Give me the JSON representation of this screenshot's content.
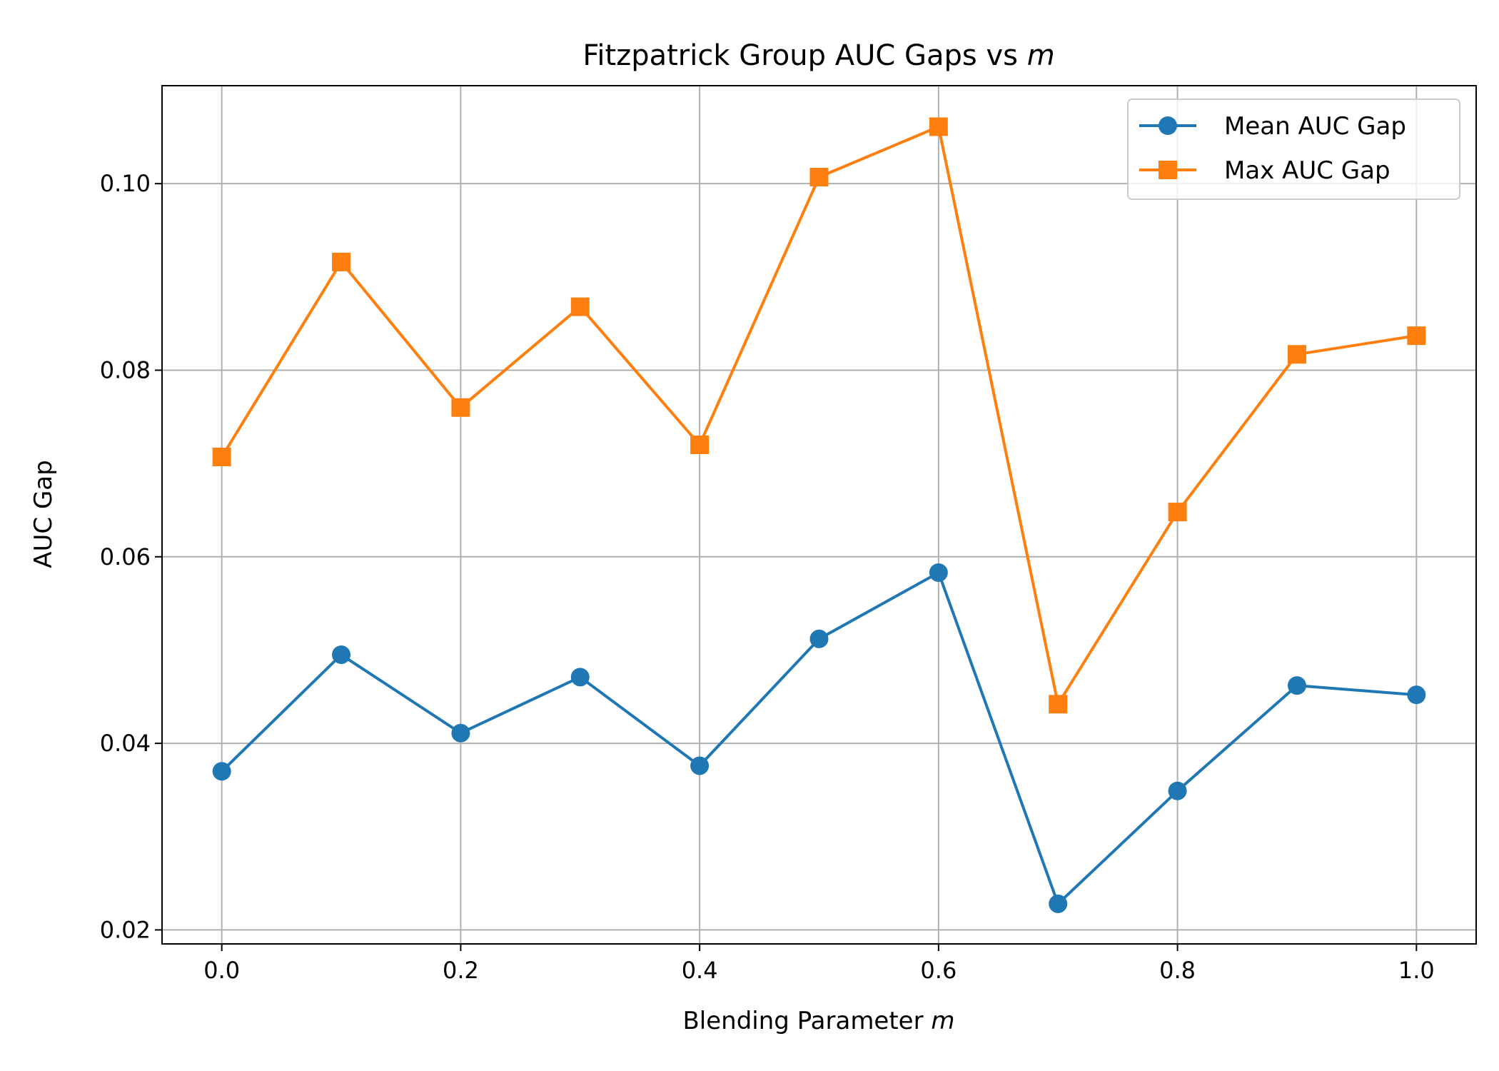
{
  "chart_data": {
    "type": "line",
    "title": "Fitzpatrick Group AUC Gaps vs ",
    "title_var": "m",
    "xlabel": "Blending Parameter ",
    "xlabel_var": "m",
    "ylabel": "AUC Gap",
    "xlim": [
      -0.05,
      1.05
    ],
    "ylim": [
      0.0185,
      0.1105
    ],
    "xticks": [
      0.0,
      0.2,
      0.4,
      0.6,
      0.8,
      1.0
    ],
    "xtick_labels": [
      "0.0",
      "0.2",
      "0.4",
      "0.6",
      "0.8",
      "1.0"
    ],
    "yticks": [
      0.02,
      0.04,
      0.06,
      0.08,
      0.1
    ],
    "ytick_labels": [
      "0.02",
      "0.04",
      "0.06",
      "0.08",
      "0.10"
    ],
    "grid": true,
    "legend_position": "top-right",
    "x": [
      0.0,
      0.1,
      0.2,
      0.3,
      0.4,
      0.5,
      0.6,
      0.7,
      0.8,
      0.9,
      1.0
    ],
    "series": [
      {
        "name": "Mean AUC Gap",
        "color": "#1f77b4",
        "marker": "circle",
        "values": [
          0.037,
          0.0495,
          0.0411,
          0.0471,
          0.0376,
          0.0512,
          0.0583,
          0.0228,
          0.0349,
          0.0462,
          0.0452
        ]
      },
      {
        "name": "Max AUC Gap",
        "color": "#ff7f0e",
        "marker": "square",
        "values": [
          0.0707,
          0.0916,
          0.076,
          0.0868,
          0.072,
          0.1007,
          0.1061,
          0.0442,
          0.0648,
          0.0817,
          0.0837
        ]
      }
    ]
  }
}
